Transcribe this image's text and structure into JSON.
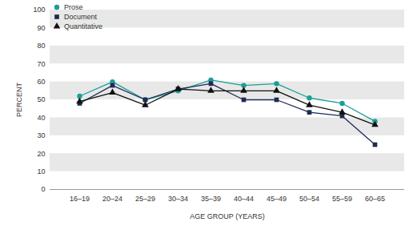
{
  "chart_data": {
    "type": "line",
    "x_label": "AGE GROUP (YEARS)",
    "y_label": "PERCENT",
    "categories": [
      "16–19",
      "20–24",
      "25–29",
      "30–34",
      "35–39",
      "40–44",
      "45–49",
      "50–54",
      "55–59",
      "60–65"
    ],
    "series": [
      {
        "name": "Prose",
        "color": "#1a9e96",
        "marker": "circle",
        "line_style": "solid",
        "values": [
          52,
          60,
          50,
          55,
          61,
          58,
          59,
          51,
          48,
          38
        ]
      },
      {
        "name": "Document",
        "color": "#1f2a55",
        "marker": "square",
        "line_style": "solid",
        "values": [
          48,
          58,
          50,
          56,
          59,
          50,
          50,
          43,
          41,
          25
        ]
      },
      {
        "name": "Quantitative",
        "color": "#111111",
        "marker": "triangle",
        "line_style": "solid",
        "values": [
          49,
          54,
          47,
          56,
          55,
          55,
          55,
          47,
          43,
          36
        ]
      }
    ],
    "ylim": [
      0,
      100
    ],
    "yticks": [
      0,
      10,
      20,
      30,
      40,
      50,
      60,
      70,
      80,
      90,
      100
    ],
    "grid": true,
    "legend": "top-left"
  }
}
